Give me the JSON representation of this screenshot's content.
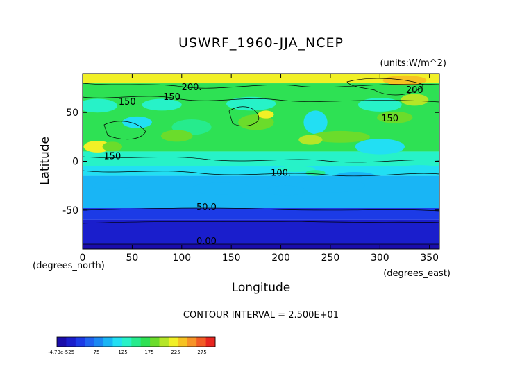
{
  "chart_data": {
    "type": "heatmap",
    "title": "USWRF_1960-JJA_NCEP",
    "units_label": "(units:W/m^2)",
    "xlabel": "Longitude",
    "ylabel": "Latitude",
    "x_unit_label": "(degrees_east)",
    "y_unit_label": "(degrees_north)",
    "xlim": [
      0,
      360
    ],
    "ylim": [
      -90,
      90
    ],
    "x_ticks": [
      0,
      50,
      100,
      150,
      200,
      250,
      300,
      350
    ],
    "y_ticks": [
      -50,
      0,
      50
    ],
    "contour_interval_text": "CONTOUR INTERVAL = 2.500E+01",
    "contour_labels": [
      {
        "text": "200.",
        "lon": 110,
        "lat": 73
      },
      {
        "text": "150",
        "lon": 45,
        "lat": 58
      },
      {
        "text": "150",
        "lon": 90,
        "lat": 63
      },
      {
        "text": "150",
        "lon": 310,
        "lat": 41
      },
      {
        "text": "200",
        "lon": 335,
        "lat": 70
      },
      {
        "text": "150",
        "lon": 30,
        "lat": 2
      },
      {
        "text": "100.",
        "lon": 200,
        "lat": -15
      },
      {
        "text": "50.0",
        "lon": 125,
        "lat": -50
      },
      {
        "text": "0.00",
        "lon": 125,
        "lat": -85
      }
    ],
    "colorbar": {
      "min_label": "-4.73e-525",
      "ticks": [
        75,
        125,
        175,
        225,
        275
      ],
      "colors": [
        "#1a0dab",
        "#1a1ecc",
        "#1c3be6",
        "#1f63f0",
        "#1b88f3",
        "#19b5f5",
        "#22dff3",
        "#27f2c8",
        "#26eb8d",
        "#2ee154",
        "#6bdc2b",
        "#b5e627",
        "#f1f026",
        "#f6c221",
        "#f79326",
        "#f25c24",
        "#e8251f"
      ]
    },
    "bands": [
      {
        "lat_top": 90,
        "lat_bottom": 80,
        "value": 225
      },
      {
        "lat_top": 80,
        "lat_bottom": 65,
        "value": 175
      },
      {
        "lat_top": 65,
        "lat_bottom": 10,
        "value": 160
      },
      {
        "lat_top": 10,
        "lat_bottom": -5,
        "value": 140
      },
      {
        "lat_top": -5,
        "lat_bottom": -15,
        "value": 115
      },
      {
        "lat_top": -15,
        "lat_bottom": -48,
        "value": 95
      },
      {
        "lat_top": -48,
        "lat_bottom": -60,
        "value": 50
      },
      {
        "lat_top": -60,
        "lat_bottom": -85,
        "value": 25
      },
      {
        "lat_top": -85,
        "lat_bottom": -90,
        "value": 0
      }
    ]
  }
}
